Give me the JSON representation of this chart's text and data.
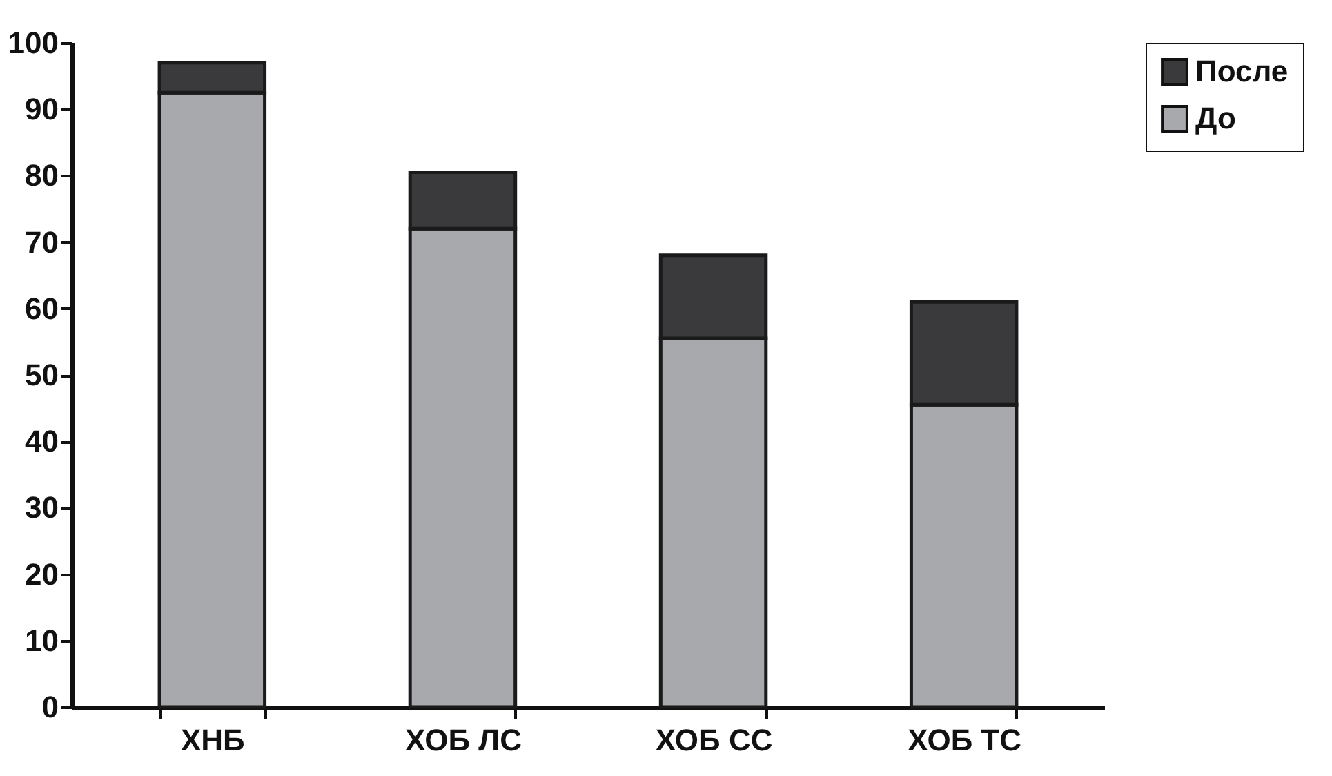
{
  "chart_data": {
    "type": "bar",
    "stacked": true,
    "categories": [
      "ХНБ",
      "ХОБ ЛС",
      "ХОБ СС",
      "ХОБ ТС"
    ],
    "series": [
      {
        "name": "До",
        "color": "#a7a9ac",
        "values": [
          92.5,
          72,
          55.5,
          45.5
        ]
      },
      {
        "name": "После",
        "color": "#3a3a3c",
        "values": [
          4.5,
          8.5,
          12.5,
          15.5
        ]
      }
    ],
    "ylim": [
      0,
      100
    ],
    "yticks": [
      0,
      10,
      20,
      30,
      40,
      50,
      60,
      70,
      80,
      90,
      100
    ],
    "grid": false,
    "legend": "right"
  }
}
